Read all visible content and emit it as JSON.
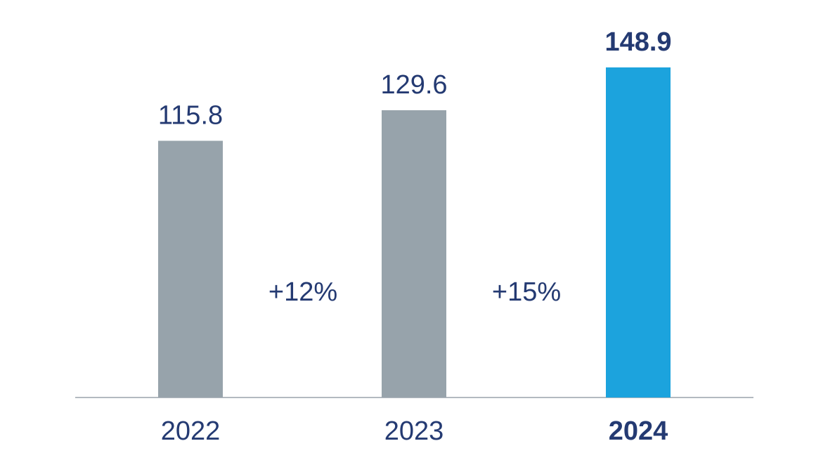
{
  "chart_data": {
    "type": "bar",
    "categories": [
      "2022",
      "2023",
      "2024"
    ],
    "values": [
      115.8,
      129.6,
      148.9
    ],
    "value_labels": [
      "115.8",
      "129.6",
      "148.9"
    ],
    "growth_labels": [
      "+12%",
      "+15%"
    ],
    "highlight_index": 2,
    "ylim": [
      0,
      148.9
    ],
    "grid": false,
    "legend": "none",
    "colors": {
      "bar": "#97a3ab",
      "highlight_bar": "#1ca3dd",
      "text": "#243a72",
      "axis": "#9aa3ab"
    }
  }
}
